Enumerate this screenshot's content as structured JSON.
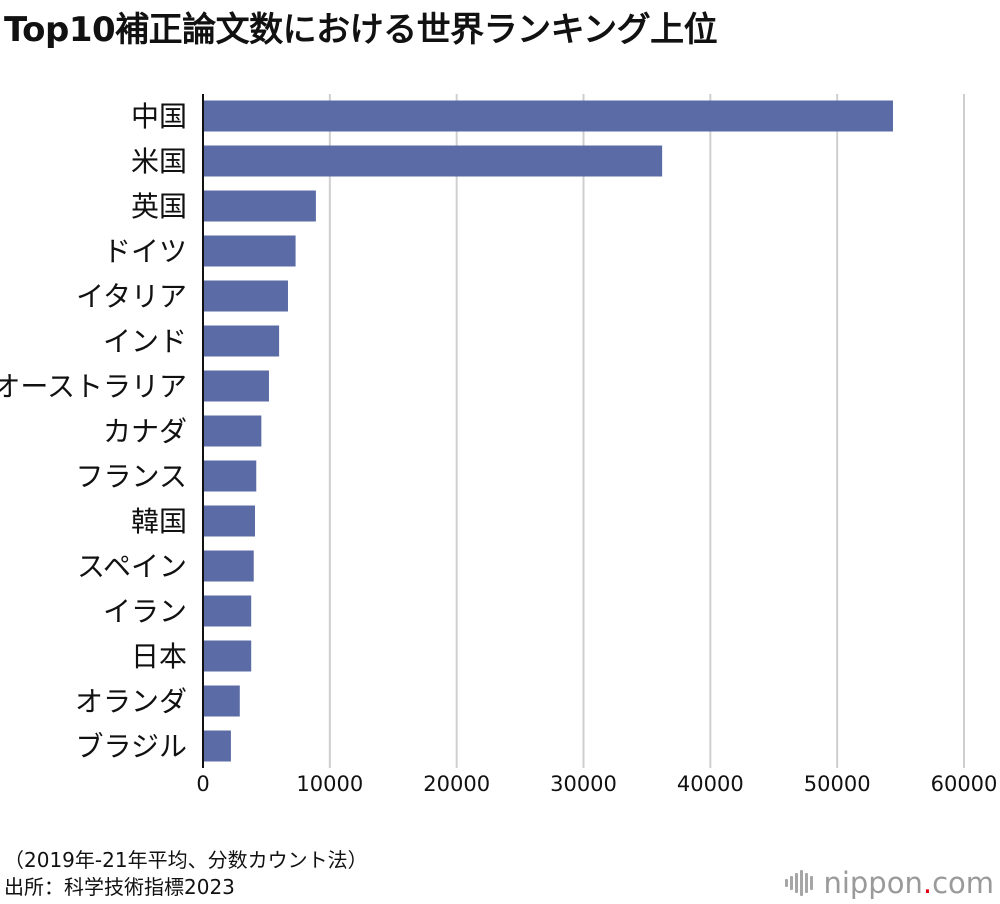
{
  "title": "Top10補正論文数における世界ランキング上位",
  "chart_data": {
    "type": "bar",
    "orientation": "horizontal",
    "title": "Top10補正論文数における世界ランキング上位",
    "xlabel": "",
    "ylabel": "",
    "xlim": [
      0,
      60000
    ],
    "x_ticks": [
      "0",
      "10000",
      "20000",
      "30000",
      "40000",
      "50000",
      "60000"
    ],
    "grid": true,
    "bar_color": "#5a6ba5",
    "categories": [
      "中国",
      "米国",
      "英国",
      "ドイツ",
      "イタリア",
      "インド",
      "オーストラリア",
      "カナダ",
      "フランス",
      "韓国",
      "スペイン",
      "イラン",
      "日本",
      "オランダ",
      "ブラジル"
    ],
    "values": [
      54400,
      36200,
      8900,
      7300,
      6700,
      6000,
      5200,
      4600,
      4200,
      4100,
      4000,
      3800,
      3800,
      2900,
      2200
    ]
  },
  "footnotes": {
    "note": "（2019年-21年平均、分数カウント法）",
    "source": "出所：科学技術指標2023"
  },
  "logo": {
    "name": "nippon",
    "dot": ".",
    "tld": "com",
    "color": "#9a9a9a",
    "dot_color": "#e60012"
  }
}
